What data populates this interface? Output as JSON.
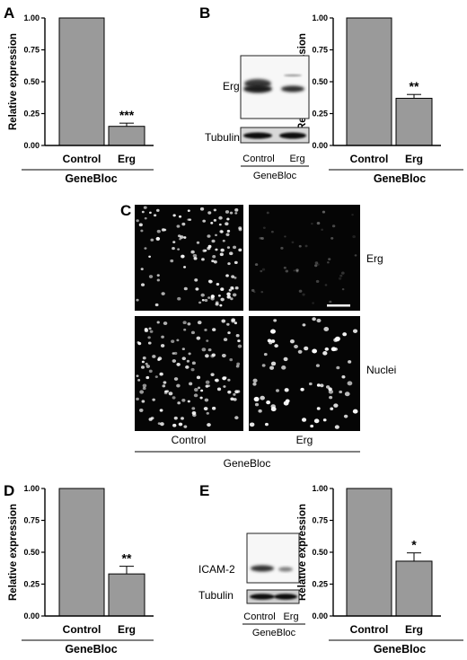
{
  "panels": {
    "A": "A",
    "B": "B",
    "C": "C",
    "D": "D",
    "E": "E"
  },
  "chart_data": [
    {
      "id": "A",
      "type": "bar",
      "categories": [
        "Control",
        "Erg"
      ],
      "values": [
        1.0,
        0.15
      ],
      "errors": [
        0,
        0.025
      ],
      "significance": "***",
      "ylabel": "Relative expression",
      "group_label": "GeneBloc",
      "ylim": [
        0,
        1.0
      ],
      "yticks": [
        "0.00",
        "0.25",
        "0.50",
        "0.75",
        "1.00"
      ],
      "bar_color": "#9a9a9a"
    },
    {
      "id": "B",
      "type": "bar",
      "categories": [
        "Control",
        "Erg"
      ],
      "values": [
        1.0,
        0.37
      ],
      "errors": [
        0,
        0.03
      ],
      "significance": "**",
      "ylabel": "Relative expression",
      "group_label": "GeneBloc",
      "ylim": [
        0,
        1.0
      ],
      "yticks": [
        "0.00",
        "0.25",
        "0.50",
        "0.75",
        "1.00"
      ],
      "bar_color": "#9a9a9a"
    },
    {
      "id": "D",
      "type": "bar",
      "categories": [
        "Control",
        "Erg"
      ],
      "values": [
        1.0,
        0.33
      ],
      "errors": [
        0,
        0.06
      ],
      "significance": "**",
      "ylabel": "Relative expression",
      "group_label": "GeneBloc",
      "ylim": [
        0,
        1.0
      ],
      "yticks": [
        "0.00",
        "0.25",
        "0.50",
        "0.75",
        "1.00"
      ],
      "bar_color": "#9a9a9a"
    },
    {
      "id": "E",
      "type": "bar",
      "categories": [
        "Control",
        "Erg"
      ],
      "values": [
        1.0,
        0.43
      ],
      "errors": [
        0,
        0.065
      ],
      "significance": "*",
      "ylabel": "Relative expression",
      "group_label": "GeneBloc",
      "ylim": [
        0,
        1.0
      ],
      "yticks": [
        "0.00",
        "0.25",
        "0.50",
        "0.75",
        "1.00"
      ],
      "bar_color": "#9a9a9a"
    }
  ],
  "blot_B": {
    "top_label": "Erg",
    "bottom_label": "Tubulin",
    "categories": [
      "Control",
      "Erg"
    ],
    "group_label": "GeneBloc"
  },
  "blot_E": {
    "top_label": "ICAM-2",
    "bottom_label": "Tubulin",
    "categories": [
      "Control",
      "Erg"
    ],
    "group_label": "GeneBloc"
  },
  "micrograph_C": {
    "row_labels": [
      "Erg",
      "Nuclei"
    ],
    "col_labels": [
      "Control",
      "Erg"
    ],
    "group_label": "GeneBloc"
  }
}
